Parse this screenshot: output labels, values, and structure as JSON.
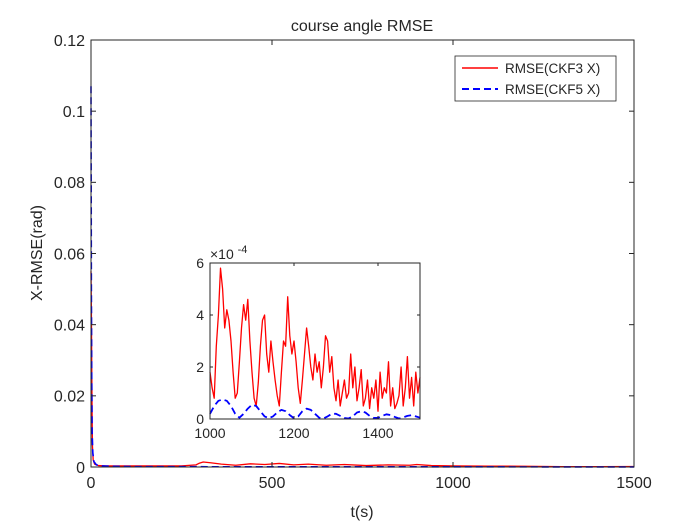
{
  "chart_data": [
    {
      "type": "line",
      "title": "course angle RMSE",
      "xlabel": "t(s)",
      "ylabel": "X-RMSE(rad)",
      "xlim": [
        0,
        1500
      ],
      "ylim": [
        0,
        0.12
      ],
      "xticks": [
        0,
        500,
        1000,
        1500
      ],
      "xtick_labels": [
        "0",
        "500",
        "1000",
        "1500"
      ],
      "yticks": [
        0,
        0.02,
        0.04,
        0.06,
        0.08,
        0.1,
        0.12
      ],
      "ytick_labels": [
        "0",
        "0.02",
        "0.04",
        "0.06",
        "0.08",
        "0.1",
        "0.12"
      ],
      "grid": false,
      "legend_position": "top-right",
      "series": [
        {
          "name": "RMSE(CKF3 X)",
          "color": "#ff0000",
          "style": "solid",
          "x": [
            0,
            1,
            2,
            3,
            4,
            6,
            10,
            20,
            40,
            80,
            150,
            250,
            290,
            300,
            310,
            330,
            360,
            400,
            440,
            480,
            520,
            560,
            600,
            650,
            700,
            760,
            820,
            880,
            900,
            940,
            1000,
            1100,
            1200,
            1300,
            1400,
            1500
          ],
          "values": [
            0.055,
            0.045,
            0.03,
            0.015,
            0.006,
            0.002,
            0.0008,
            0.0004,
            0.0003,
            0.0003,
            0.0003,
            0.0003,
            0.0006,
            0.0011,
            0.0014,
            0.0012,
            0.0008,
            0.0005,
            0.0009,
            0.0007,
            0.001,
            0.0006,
            0.0008,
            0.0005,
            0.0007,
            0.0004,
            0.0006,
            0.0005,
            0.0007,
            0.0004,
            0.0003,
            0.00025,
            0.0002,
            0.0001,
            0.0001,
            0.00015
          ]
        },
        {
          "name": "RMSE(CKF5 X)",
          "color": "#0000ff",
          "style": "dashed",
          "x": [
            0,
            0.5,
            1,
            2,
            3,
            5,
            8,
            15,
            30,
            60,
            120,
            250,
            500,
            750,
            1000,
            1250,
            1500
          ],
          "values": [
            0.107,
            0.08,
            0.05,
            0.025,
            0.01,
            0.004,
            0.0015,
            0.0006,
            0.0003,
            0.0002,
            0.0001,
            8e-05,
            6e-05,
            5e-05,
            5e-05,
            3e-05,
            2e-05
          ]
        }
      ]
    },
    {
      "type": "line",
      "title": "",
      "xlabel": "",
      "ylabel": "",
      "xlim": [
        1000,
        1500
      ],
      "ylim": [
        0,
        0.0006
      ],
      "y_exponent_label": "×10",
      "y_exponent_power": "-4",
      "xticks": [
        1000,
        1200,
        1400
      ],
      "xtick_labels": [
        "1000",
        "1200",
        "1400"
      ],
      "yticks": [
        0,
        0.0002,
        0.0004,
        0.0006
      ],
      "ytick_labels": [
        "0",
        "2",
        "4",
        "6"
      ],
      "grid": false,
      "series": [
        {
          "name": "RMSE(CKF3 X)",
          "color": "#ff0000",
          "style": "solid",
          "x": [
            1000,
            1005,
            1010,
            1015,
            1020,
            1025,
            1030,
            1035,
            1040,
            1045,
            1050,
            1055,
            1060,
            1065,
            1070,
            1075,
            1080,
            1085,
            1090,
            1095,
            1100,
            1105,
            1110,
            1115,
            1120,
            1125,
            1130,
            1135,
            1140,
            1145,
            1150,
            1155,
            1160,
            1165,
            1170,
            1175,
            1180,
            1185,
            1190,
            1195,
            1200,
            1205,
            1210,
            1215,
            1220,
            1225,
            1230,
            1235,
            1240,
            1245,
            1250,
            1255,
            1260,
            1265,
            1270,
            1275,
            1280,
            1285,
            1290,
            1295,
            1300,
            1305,
            1310,
            1315,
            1320,
            1325,
            1330,
            1335,
            1340,
            1345,
            1350,
            1355,
            1360,
            1365,
            1370,
            1375,
            1380,
            1385,
            1390,
            1395,
            1400,
            1405,
            1410,
            1415,
            1420,
            1425,
            1430,
            1435,
            1440,
            1445,
            1450,
            1455,
            1460,
            1465,
            1470,
            1475,
            1480,
            1485,
            1490,
            1495,
            1500
          ],
          "values": [
            0.00018,
            0.00012,
            8e-05,
            0.00028,
            0.0004,
            0.00058,
            0.0005,
            0.00035,
            0.00042,
            0.00038,
            0.0003,
            0.00018,
            8e-05,
            0.0001,
            0.00022,
            0.00035,
            0.00044,
            0.00038,
            0.00046,
            0.0003,
            0.00018,
            8e-05,
            5e-05,
            0.00014,
            0.00028,
            0.00038,
            0.0004,
            0.00025,
            0.00018,
            0.0003,
            0.00022,
            0.00015,
            9e-05,
            5e-05,
            0.00018,
            0.0003,
            0.00028,
            0.00047,
            0.00032,
            0.00025,
            0.0003,
            0.00022,
            0.00012,
            6e-05,
            0.00015,
            0.00025,
            0.00035,
            0.00028,
            0.0002,
            0.00015,
            0.00025,
            0.00018,
            0.00022,
            0.00012,
            0.0002,
            0.00032,
            0.0003,
            0.00018,
            0.00024,
            0.00012,
            7e-05,
            0.00015,
            5e-05,
            0.0001,
            0.00015,
            8e-05,
            0.0001,
            0.00025,
            0.00012,
            0.0002,
            7e-05,
            0.00012,
            0.00019,
            5e-05,
            8e-05,
            0.00015,
            4e-05,
            0.00012,
            8e-05,
            0.00015,
            3e-05,
            0.00018,
            8e-05,
            0.00012,
            0.0001,
            0.00022,
            5e-05,
            0.00012,
            4e-05,
            6e-05,
            9e-05,
            0.0002,
            5e-05,
            0.00012,
            0.00024,
            8e-05,
            0.00016,
            5e-05,
            0.00018,
            0.0001,
            0.00016
          ]
        },
        {
          "name": "RMSE(CKF5 X)",
          "color": "#0000ff",
          "style": "dashed",
          "x": [
            1000,
            1010,
            1020,
            1030,
            1040,
            1050,
            1060,
            1070,
            1080,
            1090,
            1100,
            1110,
            1120,
            1130,
            1140,
            1150,
            1160,
            1170,
            1180,
            1190,
            1200,
            1210,
            1220,
            1230,
            1240,
            1250,
            1260,
            1270,
            1280,
            1290,
            1300,
            1310,
            1320,
            1330,
            1340,
            1350,
            1360,
            1370,
            1380,
            1390,
            1400,
            1410,
            1420,
            1430,
            1440,
            1450,
            1460,
            1470,
            1480,
            1490,
            1500
          ],
          "values": [
            2e-05,
            5e-05,
            7e-05,
            7.5e-05,
            7e-05,
            5e-05,
            2e-05,
            5e-06,
            2e-05,
            4e-05,
            5.5e-05,
            5e-05,
            3e-05,
            1e-05,
            3e-06,
            1e-05,
            2.5e-05,
            3.5e-05,
            3e-05,
            1.5e-05,
            3e-06,
            1e-05,
            3e-05,
            4e-05,
            3.5e-05,
            2e-05,
            5e-06,
            2e-06,
            1e-05,
            2e-05,
            2e-05,
            1.2e-05,
            4e-06,
            2e-06,
            1e-05,
            2.5e-05,
            3e-05,
            2.5e-05,
            1.2e-05,
            4e-06,
            4e-06,
            1.2e-05,
            1.8e-05,
            1.5e-05,
            8e-06,
            2e-06,
            6e-06,
            1.2e-05,
            1.5e-05,
            1e-05,
            5e-06
          ]
        }
      ]
    }
  ]
}
